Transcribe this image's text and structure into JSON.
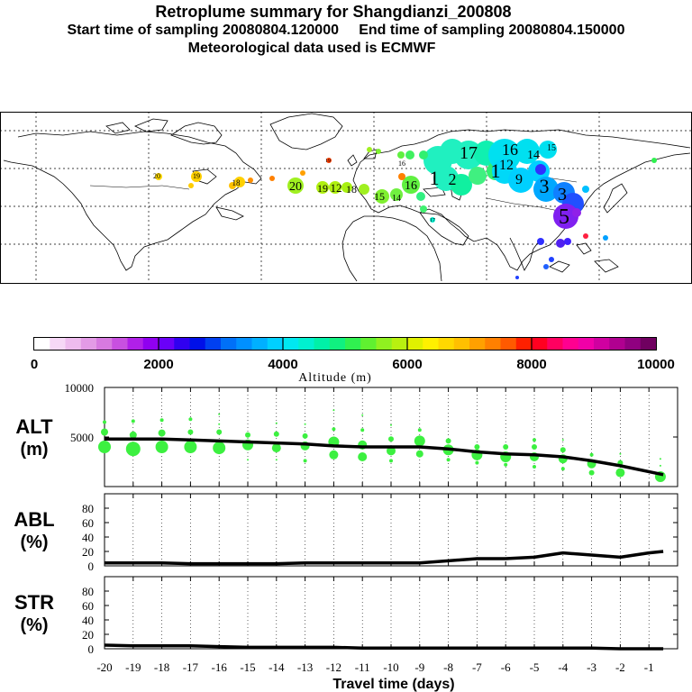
{
  "header": {
    "title": "Retroplume summary for Shangdianzi_200808",
    "sampling_line": "Start time of sampling 20080804.120000     End time of sampling 20080804.150000",
    "met_line": "Meteorological data used is ECMWF"
  },
  "colorbar": {
    "tick_labels": [
      "0",
      "2000",
      "4000",
      "6000",
      "8000",
      "10000"
    ],
    "label": "Altitude (m)",
    "colors": [
      "#ffffff",
      "#f6d8f6",
      "#eebcee",
      "#e39be6",
      "#d77ae0",
      "#c850e0",
      "#b020e8",
      "#9000f0",
      "#6a00f8",
      "#3000f0",
      "#0010e8",
      "#0040f0",
      "#0070f8",
      "#0090ff",
      "#00b0ff",
      "#00d0ff",
      "#00e8f0",
      "#00f0d0",
      "#00f0a8",
      "#10f080",
      "#30f050",
      "#60f030",
      "#90f020",
      "#b8f010",
      "#e0f000",
      "#fff000",
      "#ffd800",
      "#ffc000",
      "#ffa000",
      "#ff8000",
      "#ff5a00",
      "#ff2000",
      "#ff0020",
      "#ff0060",
      "#ff0090",
      "#f000a8",
      "#d000a0",
      "#b00090",
      "#900080",
      "#700060"
    ]
  },
  "map": {
    "labels": [
      {
        "text": "20",
        "color": "#ffdd00"
      },
      {
        "text": "19",
        "color": "#ffdd00"
      },
      {
        "text": "18",
        "color": "#ffdd00"
      },
      {
        "text": "20",
        "color": "#aaf000"
      },
      {
        "text": "19",
        "color": "#aaf000"
      },
      {
        "text": "12",
        "color": "#aaf000"
      },
      {
        "text": "18",
        "color": "#aaf000"
      },
      {
        "text": "15",
        "color": "#40f040"
      },
      {
        "text": "14",
        "color": "#40f040"
      },
      {
        "text": "16",
        "color": "#40f040"
      },
      {
        "text": "1",
        "color": "#00f0d0"
      },
      {
        "text": "2",
        "color": "#00f0d0"
      },
      {
        "text": "17",
        "color": "#00f0d0"
      },
      {
        "text": "16",
        "color": "#00e8f0"
      },
      {
        "text": "14",
        "color": "#00e8f0"
      },
      {
        "text": "12",
        "color": "#00d0ff"
      },
      {
        "text": "1",
        "color": "#00d0ff"
      },
      {
        "text": "9",
        "color": "#00d0ff"
      },
      {
        "text": "15",
        "color": "#00d0ff"
      },
      {
        "text": "3",
        "color": "#00a0ff"
      },
      {
        "text": "3",
        "color": "#2050ff"
      },
      {
        "text": "5",
        "color": "#8020f0"
      },
      {
        "text": "17",
        "color": "#00f0d0"
      },
      {
        "text": "16",
        "color": "#ffa000"
      },
      {
        "text": "19",
        "color": "#ff4000"
      }
    ]
  },
  "chart_data": [
    {
      "type": "line",
      "panel": "ALT",
      "title_line1": "ALT",
      "title_line2": "(m)",
      "ylim": [
        0,
        10000
      ],
      "yticks": [
        0,
        5000,
        10000
      ],
      "ytick_labels": [
        "",
        "5000",
        "10000"
      ],
      "xlim": [
        -20,
        0
      ],
      "series": [
        {
          "name": "mean altitude",
          "x": [
            -20,
            -19,
            -18,
            -17,
            -16,
            -15,
            -14,
            -13,
            -12,
            -11,
            -10,
            -9,
            -8,
            -7,
            -6,
            -5,
            -4,
            -3,
            -2,
            -0.5
          ],
          "values": [
            4800,
            4800,
            4800,
            4700,
            4600,
            4500,
            4400,
            4300,
            4100,
            4000,
            4000,
            4000,
            3800,
            3500,
            3300,
            3200,
            3000,
            2600,
            2100,
            1200
          ]
        }
      ],
      "plume_points": [
        {
          "x": -20,
          "y": 4000,
          "s": 7
        },
        {
          "x": -20,
          "y": 5500,
          "s": 4
        },
        {
          "x": -20,
          "y": 6500,
          "s": 2
        },
        {
          "x": -19,
          "y": 3800,
          "s": 8
        },
        {
          "x": -19,
          "y": 5200,
          "s": 4
        },
        {
          "x": -19,
          "y": 6600,
          "s": 2
        },
        {
          "x": -18,
          "y": 4000,
          "s": 7
        },
        {
          "x": -18,
          "y": 5400,
          "s": 4
        },
        {
          "x": -18,
          "y": 6700,
          "s": 2
        },
        {
          "x": -17,
          "y": 4000,
          "s": 7
        },
        {
          "x": -17,
          "y": 5500,
          "s": 3
        },
        {
          "x": -17,
          "y": 6800,
          "s": 2
        },
        {
          "x": -16,
          "y": 3900,
          "s": 7
        },
        {
          "x": -16,
          "y": 5500,
          "s": 3
        },
        {
          "x": -16,
          "y": 6300,
          "s": 1
        },
        {
          "x": -16,
          "y": 7300,
          "s": 1
        },
        {
          "x": -15,
          "y": 4200,
          "s": 6
        },
        {
          "x": -15,
          "y": 5200,
          "s": 3
        },
        {
          "x": -15,
          "y": 2700,
          "s": 1
        },
        {
          "x": -14,
          "y": 3900,
          "s": 5
        },
        {
          "x": -14,
          "y": 5300,
          "s": 3
        },
        {
          "x": -14,
          "y": 6400,
          "s": 1
        },
        {
          "x": -14,
          "y": 2700,
          "s": 1
        },
        {
          "x": -13,
          "y": 4100,
          "s": 5
        },
        {
          "x": -13,
          "y": 5100,
          "s": 3
        },
        {
          "x": -13,
          "y": 2600,
          "s": 2
        },
        {
          "x": -13,
          "y": 6300,
          "s": 1
        },
        {
          "x": -12,
          "y": 4500,
          "s": 6
        },
        {
          "x": -12,
          "y": 3200,
          "s": 5
        },
        {
          "x": -12,
          "y": 5800,
          "s": 2
        },
        {
          "x": -12,
          "y": 7700,
          "s": 1
        },
        {
          "x": -11,
          "y": 4200,
          "s": 5
        },
        {
          "x": -11,
          "y": 3000,
          "s": 5
        },
        {
          "x": -11,
          "y": 5700,
          "s": 2
        },
        {
          "x": -11,
          "y": 7200,
          "s": 1
        },
        {
          "x": -10,
          "y": 3600,
          "s": 5
        },
        {
          "x": -10,
          "y": 4800,
          "s": 3
        },
        {
          "x": -10,
          "y": 2600,
          "s": 2
        },
        {
          "x": -10,
          "y": 6200,
          "s": 1
        },
        {
          "x": -9,
          "y": 4600,
          "s": 6
        },
        {
          "x": -9,
          "y": 3300,
          "s": 4
        },
        {
          "x": -9,
          "y": 5700,
          "s": 2
        },
        {
          "x": -8,
          "y": 3700,
          "s": 6
        },
        {
          "x": -8,
          "y": 4600,
          "s": 3
        },
        {
          "x": -8,
          "y": 2700,
          "s": 2
        },
        {
          "x": -7,
          "y": 3200,
          "s": 6
        },
        {
          "x": -7,
          "y": 4000,
          "s": 3
        },
        {
          "x": -7,
          "y": 2400,
          "s": 2
        },
        {
          "x": -6,
          "y": 3000,
          "s": 6
        },
        {
          "x": -6,
          "y": 4000,
          "s": 3
        },
        {
          "x": -6,
          "y": 2200,
          "s": 2
        },
        {
          "x": -5,
          "y": 3000,
          "s": 5
        },
        {
          "x": -5,
          "y": 4000,
          "s": 3
        },
        {
          "x": -5,
          "y": 2000,
          "s": 2
        },
        {
          "x": -5,
          "y": 4700,
          "s": 2
        },
        {
          "x": -4,
          "y": 2800,
          "s": 5
        },
        {
          "x": -4,
          "y": 3700,
          "s": 3
        },
        {
          "x": -4,
          "y": 1800,
          "s": 2
        },
        {
          "x": -4,
          "y": 4700,
          "s": 1
        },
        {
          "x": -3,
          "y": 2300,
          "s": 5
        },
        {
          "x": -3,
          "y": 1400,
          "s": 3
        },
        {
          "x": -3,
          "y": 3200,
          "s": 2
        },
        {
          "x": -2,
          "y": 1400,
          "s": 5
        },
        {
          "x": -2,
          "y": 2400,
          "s": 3
        },
        {
          "x": -2,
          "y": 3300,
          "s": 1
        },
        {
          "x": -0.6,
          "y": 1000,
          "s": 6
        },
        {
          "x": -0.6,
          "y": 2100,
          "s": 1
        },
        {
          "x": -0.6,
          "y": 2800,
          "s": 1
        }
      ],
      "plume_color": "#3cf040"
    },
    {
      "type": "line",
      "panel": "ABL",
      "title_line1": "ABL",
      "title_line2": "(%)",
      "ylim": [
        0,
        100
      ],
      "yticks": [
        0,
        20,
        40,
        60,
        80
      ],
      "ytick_labels": [
        "0",
        "20",
        "40",
        "60",
        "80"
      ],
      "xlim": [
        -20,
        0
      ],
      "series": [
        {
          "name": "fraction in ABL",
          "x": [
            -20,
            -19,
            -18,
            -17,
            -16,
            -15,
            -14,
            -13,
            -12,
            -11,
            -10,
            -9,
            -8,
            -7,
            -6,
            -5,
            -4,
            -3,
            -2,
            -1,
            -0.5
          ],
          "values": [
            4,
            4,
            4,
            3,
            3,
            3,
            3,
            4,
            4,
            4,
            4,
            4,
            7,
            10,
            10,
            12,
            18,
            15,
            12,
            18,
            20
          ]
        }
      ]
    },
    {
      "type": "line",
      "panel": "STR",
      "title_line1": "STR",
      "title_line2": "(%)",
      "ylim": [
        0,
        100
      ],
      "yticks": [
        0,
        20,
        40,
        60,
        80
      ],
      "ytick_labels": [
        "0",
        "20",
        "40",
        "60",
        "80"
      ],
      "xlim": [
        -20,
        0
      ],
      "series": [
        {
          "name": "fraction in stratosphere",
          "x": [
            -20,
            -19,
            -18,
            -17,
            -16,
            -15,
            -14,
            -13,
            -12,
            -11,
            -10,
            -9,
            -8,
            -7,
            -6,
            -5,
            -4,
            -3,
            -2,
            -1,
            -0.5
          ],
          "values": [
            5,
            4,
            4,
            4,
            3,
            2,
            2,
            2,
            2,
            1,
            1,
            1,
            1,
            1,
            1,
            1,
            1,
            1,
            0,
            0,
            0
          ]
        }
      ]
    }
  ],
  "x_axis": {
    "tick_labels": [
      "-20",
      "-19",
      "-18",
      "-17",
      "-16",
      "-15",
      "-14",
      "-13",
      "-12",
      "-11",
      "-10",
      "-9",
      "-8",
      "-7",
      "-6",
      "-5",
      "-4",
      "-3",
      "-2",
      "-1"
    ],
    "label": "Travel time (days)"
  }
}
